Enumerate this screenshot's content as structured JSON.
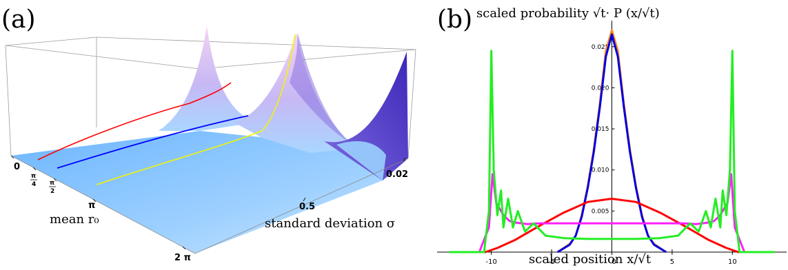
{
  "chart_data": [
    {
      "type": "surface",
      "panel_label": "(a)",
      "xlabel": "mean r₀",
      "ylabel": "standard deviation σ",
      "x_ticks": [
        "0",
        "π/4",
        "π/2",
        "π",
        "2 π"
      ],
      "y_ticks": [
        "0.5",
        "0.02"
      ],
      "colors": {
        "surface_low": "#7fc0ff",
        "surface_high": "#f2c6f0",
        "surface_edge": "#4a35c8"
      },
      "curves": [
        {
          "mean": "π/4",
          "color": "#ff0000"
        },
        {
          "mean": "π/2",
          "color": "#0000ff"
        },
        {
          "mean": "π",
          "color": "#ffff00"
        }
      ]
    },
    {
      "type": "line",
      "panel_label": "(b)",
      "title": "scaled probability √t· P (x/√t)",
      "xlabel": "scaled position x/√t",
      "xlim": [
        -14.5,
        14.5
      ],
      "ylim": [
        0,
        0.028
      ],
      "x_ticks": [
        -10,
        -5,
        0,
        5,
        10
      ],
      "y_ticks": [
        0.005,
        0.01,
        0.015,
        0.02,
        0.025
      ],
      "y_tick_labels": [
        "0.005",
        "0.010",
        "0.015",
        "0.020",
        "0.025"
      ],
      "series": [
        {
          "color": "#ff8a1c",
          "x": [
            -4.5,
            -3.5,
            -3,
            -2.5,
            -2,
            -1.5,
            -1,
            -0.5,
            0,
            0.5,
            1,
            1.5,
            2,
            2.5,
            3,
            3.5,
            4.5
          ],
          "y": [
            0,
            0.001,
            0.002,
            0.0045,
            0.008,
            0.0125,
            0.018,
            0.0245,
            0.027,
            0.0245,
            0.018,
            0.0125,
            0.008,
            0.0045,
            0.002,
            0.001,
            0
          ]
        },
        {
          "color": "#0000e0",
          "x": [
            -4.5,
            -3.5,
            -3,
            -2.5,
            -2,
            -1.5,
            -1,
            -0.5,
            0,
            0.5,
            1,
            1.5,
            2,
            2.5,
            3,
            3.5,
            4.5
          ],
          "y": [
            0,
            0.0009,
            0.002,
            0.0043,
            0.0078,
            0.0122,
            0.0176,
            0.0238,
            0.0265,
            0.0238,
            0.0176,
            0.0122,
            0.0078,
            0.0043,
            0.002,
            0.0009,
            0
          ]
        },
        {
          "color": "#ff0000",
          "x": [
            -13.5,
            -10.5,
            -9.5,
            -8,
            -6,
            -4,
            -2,
            0,
            2,
            4,
            6,
            8,
            9.5,
            10.5,
            13.5
          ],
          "y": [
            0,
            0,
            0.0005,
            0.0015,
            0.0032,
            0.0048,
            0.0061,
            0.0065,
            0.0061,
            0.0048,
            0.0032,
            0.0015,
            0.0005,
            0,
            0
          ]
        },
        {
          "color": "#ff20ff",
          "x": [
            -13.5,
            -11,
            -10.2,
            -9.9,
            -9.6,
            -9,
            -8.5,
            -8,
            -7,
            -6,
            -4,
            -2,
            0,
            2,
            4,
            6,
            7,
            8,
            8.5,
            9,
            9.6,
            9.9,
            10.2,
            11,
            13.5
          ],
          "y": [
            0,
            0,
            0.003,
            0.0095,
            0.006,
            0.0045,
            0.0038,
            0.0036,
            0.0034,
            0.0035,
            0.0035,
            0.0035,
            0.0035,
            0.0035,
            0.0035,
            0.0035,
            0.0034,
            0.0036,
            0.0038,
            0.0045,
            0.006,
            0.0095,
            0.003,
            0,
            0
          ]
        },
        {
          "color": "#22ee22",
          "x": [
            -13.5,
            -10.6,
            -10.2,
            -10,
            -9.8,
            -9.5,
            -9.2,
            -9,
            -8.6,
            -8.2,
            -7.8,
            -7.2,
            -6.5,
            -5.5,
            -4,
            -2,
            0,
            2,
            4,
            5.5,
            6.5,
            7.2,
            7.8,
            8.2,
            8.6,
            9,
            9.2,
            9.5,
            9.8,
            10,
            10.2,
            10.6,
            13.5
          ],
          "y": [
            0,
            0,
            0.005,
            0.0245,
            0.01,
            0.0045,
            0.0075,
            0.003,
            0.0065,
            0.003,
            0.005,
            0.0025,
            0.0035,
            0.002,
            0.0017,
            0.0016,
            0.0016,
            0.0016,
            0.0017,
            0.002,
            0.0035,
            0.0025,
            0.005,
            0.003,
            0.0065,
            0.003,
            0.0075,
            0.0045,
            0.01,
            0.0245,
            0.005,
            0,
            0
          ]
        }
      ]
    }
  ]
}
